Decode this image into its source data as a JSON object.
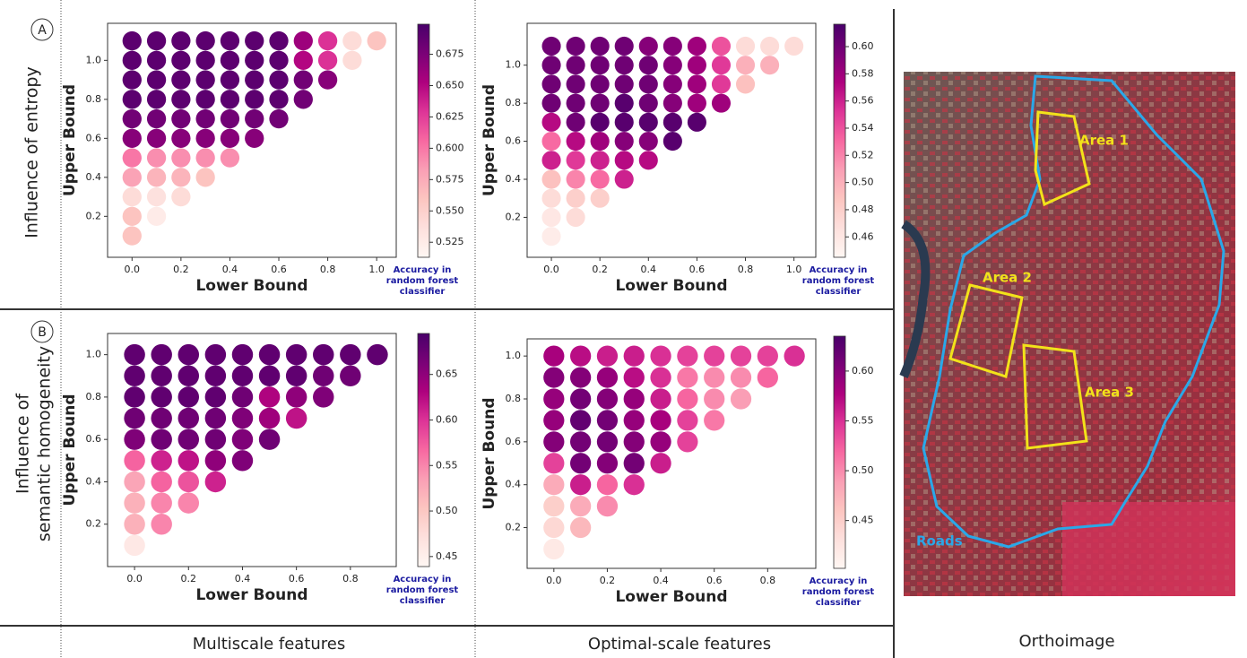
{
  "chart_data": [
    {
      "type": "scatter",
      "x_label": "Lower Bound",
      "y_label": "Upper Bound",
      "colorbar_label": [
        "Accuracy in",
        "random forest",
        "classifier"
      ],
      "xlim": [
        -0.1,
        1.08
      ],
      "ylim": [
        -0.01,
        1.19
      ],
      "xticks": [
        {
          "value": 0,
          "label": "0.0"
        },
        0.2,
        0.4,
        0.6,
        0.8,
        {
          "value": 1,
          "label": "1.0"
        }
      ],
      "yticks": [
        0.2,
        0.4,
        0.6,
        0.8,
        {
          "value": 1,
          "label": "1.0"
        }
      ],
      "clim": [
        0.513,
        0.699
      ],
      "cticks": [
        0.525,
        {
          "value": 0.55,
          "label": "0.550"
        },
        0.575,
        {
          "value": 0.6,
          "label": "0.600"
        },
        0.625,
        {
          "value": 0.65,
          "label": "0.650"
        },
        0.675
      ],
      "x": [
        0,
        0.1,
        0.2,
        0.3,
        0.4,
        0.5,
        0.6,
        0.7,
        0.8,
        0.9,
        1.0
      ],
      "rows": [
        {
          "y": 1.1,
          "values": [
            0.69,
            0.69,
            0.69,
            0.69,
            0.69,
            0.69,
            0.69,
            0.66,
            0.63,
            0.54,
            0.56
          ]
        },
        {
          "y": 1.0,
          "values": [
            0.69,
            0.69,
            0.69,
            0.69,
            0.69,
            0.69,
            0.69,
            0.65,
            0.63,
            0.54
          ]
        },
        {
          "y": 0.9,
          "values": [
            0.69,
            0.69,
            0.69,
            0.69,
            0.69,
            0.69,
            0.69,
            0.68,
            0.67
          ]
        },
        {
          "y": 0.8,
          "values": [
            0.69,
            0.69,
            0.69,
            0.69,
            0.69,
            0.69,
            0.69,
            0.68
          ]
        },
        {
          "y": 0.7,
          "values": [
            0.68,
            0.68,
            0.68,
            0.68,
            0.68,
            0.68,
            0.68
          ]
        },
        {
          "y": 0.6,
          "values": [
            0.67,
            0.67,
            0.67,
            0.67,
            0.67,
            0.67
          ]
        },
        {
          "y": 0.5,
          "values": [
            0.6,
            0.59,
            0.59,
            0.59,
            0.59
          ]
        },
        {
          "y": 0.4,
          "values": [
            0.58,
            0.57,
            0.57,
            0.56
          ]
        },
        {
          "y": 0.3,
          "values": [
            0.54,
            0.535,
            0.54
          ]
        },
        {
          "y": 0.2,
          "values": [
            0.56,
            0.525
          ]
        },
        {
          "y": 0.1,
          "values": [
            0.56
          ]
        }
      ]
    },
    {
      "type": "scatter",
      "x_label": "Lower Bound",
      "y_label": "Upper Bound",
      "colorbar_label": [
        "Accuracy in",
        "random forest",
        "classifier"
      ],
      "xlim": [
        -0.1,
        1.09
      ],
      "ylim": [
        -0.01,
        1.22
      ],
      "xticks": [
        {
          "value": 0,
          "label": "0.0"
        },
        0.2,
        0.4,
        0.6,
        0.8,
        {
          "value": 1,
          "label": "1.0"
        }
      ],
      "yticks": [
        0.2,
        0.4,
        0.6,
        0.8,
        {
          "value": 1,
          "label": "1.0"
        }
      ],
      "clim": [
        0.445,
        0.6165
      ],
      "cticks": [
        0.46,
        0.48,
        {
          "value": 0.5,
          "label": "0.50"
        },
        0.52,
        0.54,
        0.56,
        0.58,
        {
          "value": 0.6,
          "label": "0.60"
        }
      ],
      "x": [
        0,
        0.1,
        0.2,
        0.3,
        0.4,
        0.5,
        0.6,
        0.7,
        0.8,
        0.9,
        1.0
      ],
      "rows": [
        {
          "y": 1.1,
          "values": [
            0.6,
            0.6,
            0.6,
            0.6,
            0.59,
            0.59,
            0.58,
            0.54,
            0.47,
            0.47,
            0.47
          ]
        },
        {
          "y": 1.0,
          "values": [
            0.6,
            0.6,
            0.6,
            0.6,
            0.6,
            0.59,
            0.58,
            0.55,
            0.5,
            0.5
          ]
        },
        {
          "y": 0.9,
          "values": [
            0.6,
            0.6,
            0.6,
            0.6,
            0.6,
            0.59,
            0.58,
            0.55,
            0.49
          ]
        },
        {
          "y": 0.8,
          "values": [
            0.6,
            0.6,
            0.6,
            0.61,
            0.6,
            0.59,
            0.58,
            0.58
          ]
        },
        {
          "y": 0.7,
          "values": [
            0.57,
            0.6,
            0.61,
            0.61,
            0.61,
            0.61,
            0.61
          ]
        },
        {
          "y": 0.6,
          "values": [
            0.53,
            0.57,
            0.58,
            0.59,
            0.59,
            0.61
          ]
        },
        {
          "y": 0.5,
          "values": [
            0.56,
            0.55,
            0.56,
            0.57,
            0.57
          ]
        },
        {
          "y": 0.4,
          "values": [
            0.49,
            0.52,
            0.53,
            0.56
          ]
        },
        {
          "y": 0.3,
          "values": [
            0.47,
            0.48,
            0.48
          ]
        },
        {
          "y": 0.2,
          "values": [
            0.46,
            0.47
          ]
        },
        {
          "y": 0.1,
          "values": [
            0.455
          ]
        }
      ]
    },
    {
      "type": "scatter",
      "x_label": "Lower Bound",
      "y_label": "Upper Bound",
      "colorbar_label": [
        "Accuracy in",
        "random forest",
        "classifier"
      ],
      "xlim": [
        -0.1,
        0.97
      ],
      "ylim": [
        0,
        1.1
      ],
      "xticks": [
        {
          "value": 0,
          "label": "0.0"
        },
        0.2,
        0.4,
        0.6,
        0.8
      ],
      "yticks": [
        0.2,
        0.4,
        0.6,
        0.8,
        {
          "value": 1,
          "label": "1.0"
        }
      ],
      "clim": [
        0.439,
        0.695
      ],
      "cticks": [
        0.45,
        {
          "value": 0.5,
          "label": "0.50"
        },
        0.55,
        {
          "value": 0.6,
          "label": "0.60"
        },
        0.65
      ],
      "x": [
        0,
        0.1,
        0.2,
        0.3,
        0.4,
        0.5,
        0.6,
        0.7,
        0.8,
        0.9
      ],
      "rows": [
        {
          "y": 1.0,
          "values": [
            0.68,
            0.68,
            0.68,
            0.68,
            0.68,
            0.68,
            0.68,
            0.68,
            0.68,
            0.68
          ]
        },
        {
          "y": 0.9,
          "values": [
            0.68,
            0.68,
            0.68,
            0.68,
            0.68,
            0.68,
            0.68,
            0.67,
            0.67
          ]
        },
        {
          "y": 0.8,
          "values": [
            0.68,
            0.68,
            0.68,
            0.68,
            0.67,
            0.63,
            0.65,
            0.66
          ]
        },
        {
          "y": 0.7,
          "values": [
            0.67,
            0.67,
            0.67,
            0.67,
            0.66,
            0.64,
            0.62
          ]
        },
        {
          "y": 0.6,
          "values": [
            0.66,
            0.67,
            0.67,
            0.67,
            0.66,
            0.67
          ]
        },
        {
          "y": 0.5,
          "values": [
            0.57,
            0.61,
            0.62,
            0.65,
            0.66
          ]
        },
        {
          "y": 0.4,
          "values": [
            0.53,
            0.57,
            0.58,
            0.61
          ]
        },
        {
          "y": 0.3,
          "values": [
            0.52,
            0.55,
            0.55
          ]
        },
        {
          "y": 0.2,
          "values": [
            0.52,
            0.55
          ]
        },
        {
          "y": 0.1,
          "values": [
            0.46
          ]
        }
      ]
    },
    {
      "type": "scatter",
      "x_label": "Lower Bound",
      "y_label": "Upper Bound",
      "colorbar_label": [
        "Accuracy in",
        "random forest",
        "classifier"
      ],
      "xlim": [
        -0.1,
        0.98
      ],
      "ylim": [
        0.01,
        1.08
      ],
      "xticks": [
        {
          "value": 0,
          "label": "0.0"
        },
        0.2,
        0.4,
        0.6,
        0.8
      ],
      "yticks": [
        0.2,
        0.4,
        0.6,
        0.8,
        {
          "value": 1,
          "label": "1.0"
        }
      ],
      "clim": [
        0.402,
        0.635
      ],
      "cticks": [
        0.45,
        {
          "value": 0.5,
          "label": "0.50"
        },
        0.55,
        {
          "value": 0.6,
          "label": "0.60"
        }
      ],
      "x": [
        0,
        0.1,
        0.2,
        0.3,
        0.4,
        0.5,
        0.6,
        0.7,
        0.8,
        0.9
      ],
      "rows": [
        {
          "y": 1.0,
          "values": [
            0.58,
            0.57,
            0.56,
            0.56,
            0.55,
            0.54,
            0.54,
            0.54,
            0.54,
            0.55
          ]
        },
        {
          "y": 0.9,
          "values": [
            0.6,
            0.6,
            0.59,
            0.57,
            0.55,
            0.51,
            0.5,
            0.5,
            0.52
          ]
        },
        {
          "y": 0.8,
          "values": [
            0.59,
            0.61,
            0.6,
            0.59,
            0.56,
            0.52,
            0.5,
            0.49
          ]
        },
        {
          "y": 0.7,
          "values": [
            0.59,
            0.62,
            0.61,
            0.59,
            0.58,
            0.54,
            0.51
          ]
        },
        {
          "y": 0.6,
          "values": [
            0.6,
            0.61,
            0.61,
            0.6,
            0.59,
            0.54
          ]
        },
        {
          "y": 0.5,
          "values": [
            0.54,
            0.61,
            0.6,
            0.61,
            0.56
          ]
        },
        {
          "y": 0.4,
          "values": [
            0.48,
            0.56,
            0.52,
            0.55
          ]
        },
        {
          "y": 0.3,
          "values": [
            0.45,
            0.48,
            0.5
          ]
        },
        {
          "y": 0.2,
          "values": [
            0.44,
            0.47
          ]
        },
        {
          "y": 0.1,
          "values": [
            0.42
          ]
        }
      ]
    }
  ],
  "panels": {
    "letters": [
      "A",
      "B"
    ],
    "row_labels": [
      {
        "lines": [
          "Influence of entropy"
        ]
      },
      {
        "lines": [
          "Influence of",
          "semantic homogeneity"
        ]
      }
    ],
    "column_labels": [
      "Multiscale features",
      "Optimal-scale features",
      "Orthoimage"
    ]
  },
  "orthoimage": {
    "labels": [
      "Area 1",
      "Area 2",
      "Area 3",
      "Roads"
    ]
  }
}
